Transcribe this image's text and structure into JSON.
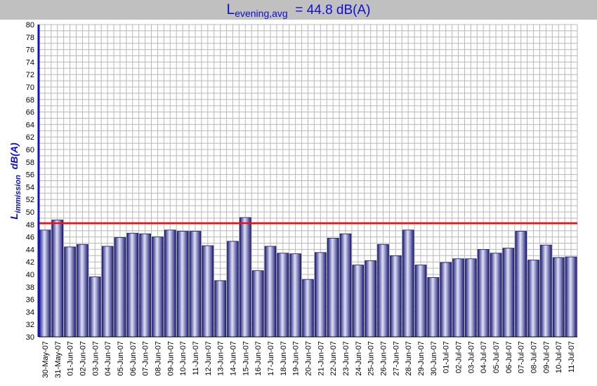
{
  "title": {
    "symbol": "L",
    "subscript": "evening,avg",
    "value_text": "=  44.8 dB(A)"
  },
  "chart_data": {
    "type": "bar",
    "title": "Levening,avg =  44.8 dB(A)",
    "ylabel": "Limmission  dB(A)",
    "ylabel_main": "L",
    "ylabel_sub": "immission",
    "ylabel_unit": "dB(A)",
    "ylim": [
      30,
      80
    ],
    "ytick_step": 2,
    "grid": true,
    "reference_line": 48.2,
    "categories": [
      "30-May-07",
      "31-May-07",
      "01-Jun-07",
      "02-Jun-07",
      "03-Jun-07",
      "04-Jun-07",
      "05-Jun-07",
      "06-Jun-07",
      "07-Jun-07",
      "08-Jun-07",
      "09-Jun-07",
      "10-Jun-07",
      "11-Jun-07",
      "12-Jun-07",
      "13-Jun-07",
      "14-Jun-07",
      "15-Jun-07",
      "16-Jun-07",
      "17-Jun-07",
      "18-Jun-07",
      "19-Jun-07",
      "20-Jun-07",
      "21-Jun-07",
      "22-Jun-07",
      "23-Jun-07",
      "24-Jun-07",
      "25-Jun-07",
      "26-Jun-07",
      "27-Jun-07",
      "28-Jun-07",
      "29-Jun-07",
      "30-Jun-07",
      "01-Jul-07",
      "02-Jul-07",
      "03-Jul-07",
      "04-Jul-07",
      "05-Jul-07",
      "06-Jul-07",
      "07-Jul-07",
      "08-Jul-07",
      "09-Jul-07",
      "10-Jul-07",
      "11-Jul-07"
    ],
    "values": [
      47.1,
      48.7,
      44.4,
      44.8,
      39.6,
      44.5,
      45.9,
      46.6,
      46.5,
      46.0,
      47.1,
      46.9,
      46.9,
      44.6,
      39.0,
      45.3,
      49.1,
      40.6,
      44.5,
      43.4,
      43.3,
      39.2,
      43.5,
      45.8,
      46.5,
      41.5,
      42.2,
      44.8,
      43.0,
      47.1,
      41.5,
      39.5,
      41.9,
      42.5,
      42.5,
      44.0,
      43.4,
      44.2,
      46.9,
      42.3,
      44.7,
      42.7,
      42.8
    ],
    "colors": {
      "bar_dark": "#1f1f7a",
      "bar_light": "#e0e0f6",
      "bar_mid": "#5a5ac8",
      "reference": "#ee1111",
      "grid": "#b8b8b8",
      "axis": "#1010c8",
      "title_bg": "#c0c0c0",
      "title_text": "#1010c8"
    }
  }
}
